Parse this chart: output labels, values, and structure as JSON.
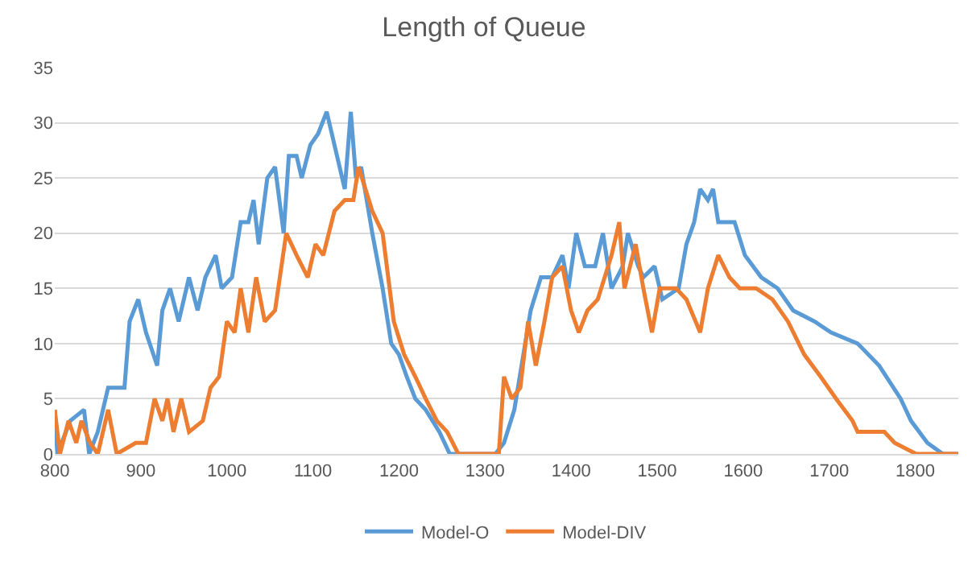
{
  "chart_data": {
    "type": "line",
    "title": "Length of Queue",
    "xlim": [
      800,
      1850
    ],
    "xticks": [
      800,
      900,
      1000,
      1100,
      1200,
      1300,
      1400,
      1500,
      1600,
      1700,
      1800
    ],
    "ylim": [
      0,
      35
    ],
    "yticks": [
      0,
      5,
      10,
      15,
      20,
      25,
      30,
      35
    ],
    "grid": "y",
    "legend": "bottom",
    "marker": "none",
    "line_style": "solid",
    "series": [
      {
        "name": "Model-O",
        "color": "#5b9bd5",
        "x": [
          800,
          803,
          818,
          834,
          840,
          850,
          862,
          881,
          887,
          897,
          906,
          919,
          925,
          934,
          944,
          956,
          966,
          975,
          987,
          994,
          1006,
          1016,
          1025,
          1031,
          1037,
          1047,
          1056,
          1066,
          1072,
          1081,
          1087,
          1097,
          1106,
          1116,
          1128,
          1137,
          1144,
          1150,
          1156,
          1169,
          1181,
          1191,
          1200,
          1209,
          1219,
          1231,
          1247,
          1259,
          1312,
          1322,
          1334,
          1353,
          1365,
          1378,
          1390,
          1397,
          1406,
          1416,
          1428,
          1437,
          1447,
          1460,
          1466,
          1478,
          1484,
          1497,
          1506,
          1525,
          1534,
          1543,
          1550,
          1559,
          1565,
          1571,
          1590,
          1602,
          1621,
          1640,
          1658,
          1683,
          1702,
          1733,
          1758,
          1783,
          1795,
          1814,
          1832,
          1850
        ],
        "values": [
          4,
          0,
          3,
          4,
          0,
          2,
          6,
          6,
          12,
          14,
          11,
          8,
          13,
          15,
          12,
          16,
          13,
          16,
          18,
          15,
          16,
          21,
          21,
          23,
          19,
          25,
          26,
          20,
          27,
          27,
          25,
          28,
          29,
          31,
          27,
          24,
          31,
          25,
          26,
          20,
          15,
          10,
          9,
          7,
          5,
          4,
          2,
          0,
          0,
          1,
          4,
          13,
          16,
          16,
          18,
          15,
          20,
          17,
          17,
          20,
          15,
          17,
          20,
          17,
          16,
          17,
          14,
          15,
          19,
          21,
          24,
          23,
          24,
          21,
          21,
          18,
          16,
          15,
          13,
          12,
          11,
          10,
          8,
          5,
          3,
          1,
          0,
          0
        ]
      },
      {
        "name": "Model-DIV",
        "color": "#ed7d31",
        "x": [
          800,
          806,
          816,
          825,
          831,
          841,
          850,
          862,
          872,
          894,
          906,
          916,
          925,
          931,
          938,
          947,
          956,
          972,
          981,
          991,
          1000,
          1009,
          1016,
          1025,
          1034,
          1044,
          1056,
          1069,
          1081,
          1094,
          1103,
          1112,
          1125,
          1137,
          1147,
          1153,
          1169,
          1181,
          1194,
          1206,
          1219,
          1231,
          1244,
          1256,
          1269,
          1316,
          1322,
          1331,
          1341,
          1350,
          1359,
          1369,
          1378,
          1390,
          1400,
          1409,
          1419,
          1431,
          1447,
          1456,
          1462,
          1475,
          1484,
          1494,
          1503,
          1522,
          1534,
          1550,
          1559,
          1571,
          1584,
          1596,
          1615,
          1634,
          1652,
          1671,
          1690,
          1708,
          1727,
          1733,
          1764,
          1776,
          1801,
          1850
        ],
        "values": [
          4,
          0,
          3,
          1,
          3,
          1,
          0,
          4,
          0,
          1,
          1,
          5,
          3,
          5,
          2,
          5,
          2,
          3,
          6,
          7,
          12,
          11,
          15,
          11,
          16,
          12,
          13,
          20,
          18,
          16,
          19,
          18,
          22,
          23,
          23,
          26,
          22,
          20,
          12,
          9,
          7,
          5,
          3,
          2,
          0,
          0,
          7,
          5,
          6,
          12,
          8,
          12,
          16,
          17,
          13,
          11,
          13,
          14,
          18,
          21,
          15,
          19,
          15,
          11,
          15,
          15,
          14,
          11,
          15,
          18,
          16,
          15,
          15,
          14,
          12,
          9,
          7,
          5,
          3,
          2,
          2,
          1,
          0,
          0
        ]
      }
    ]
  }
}
